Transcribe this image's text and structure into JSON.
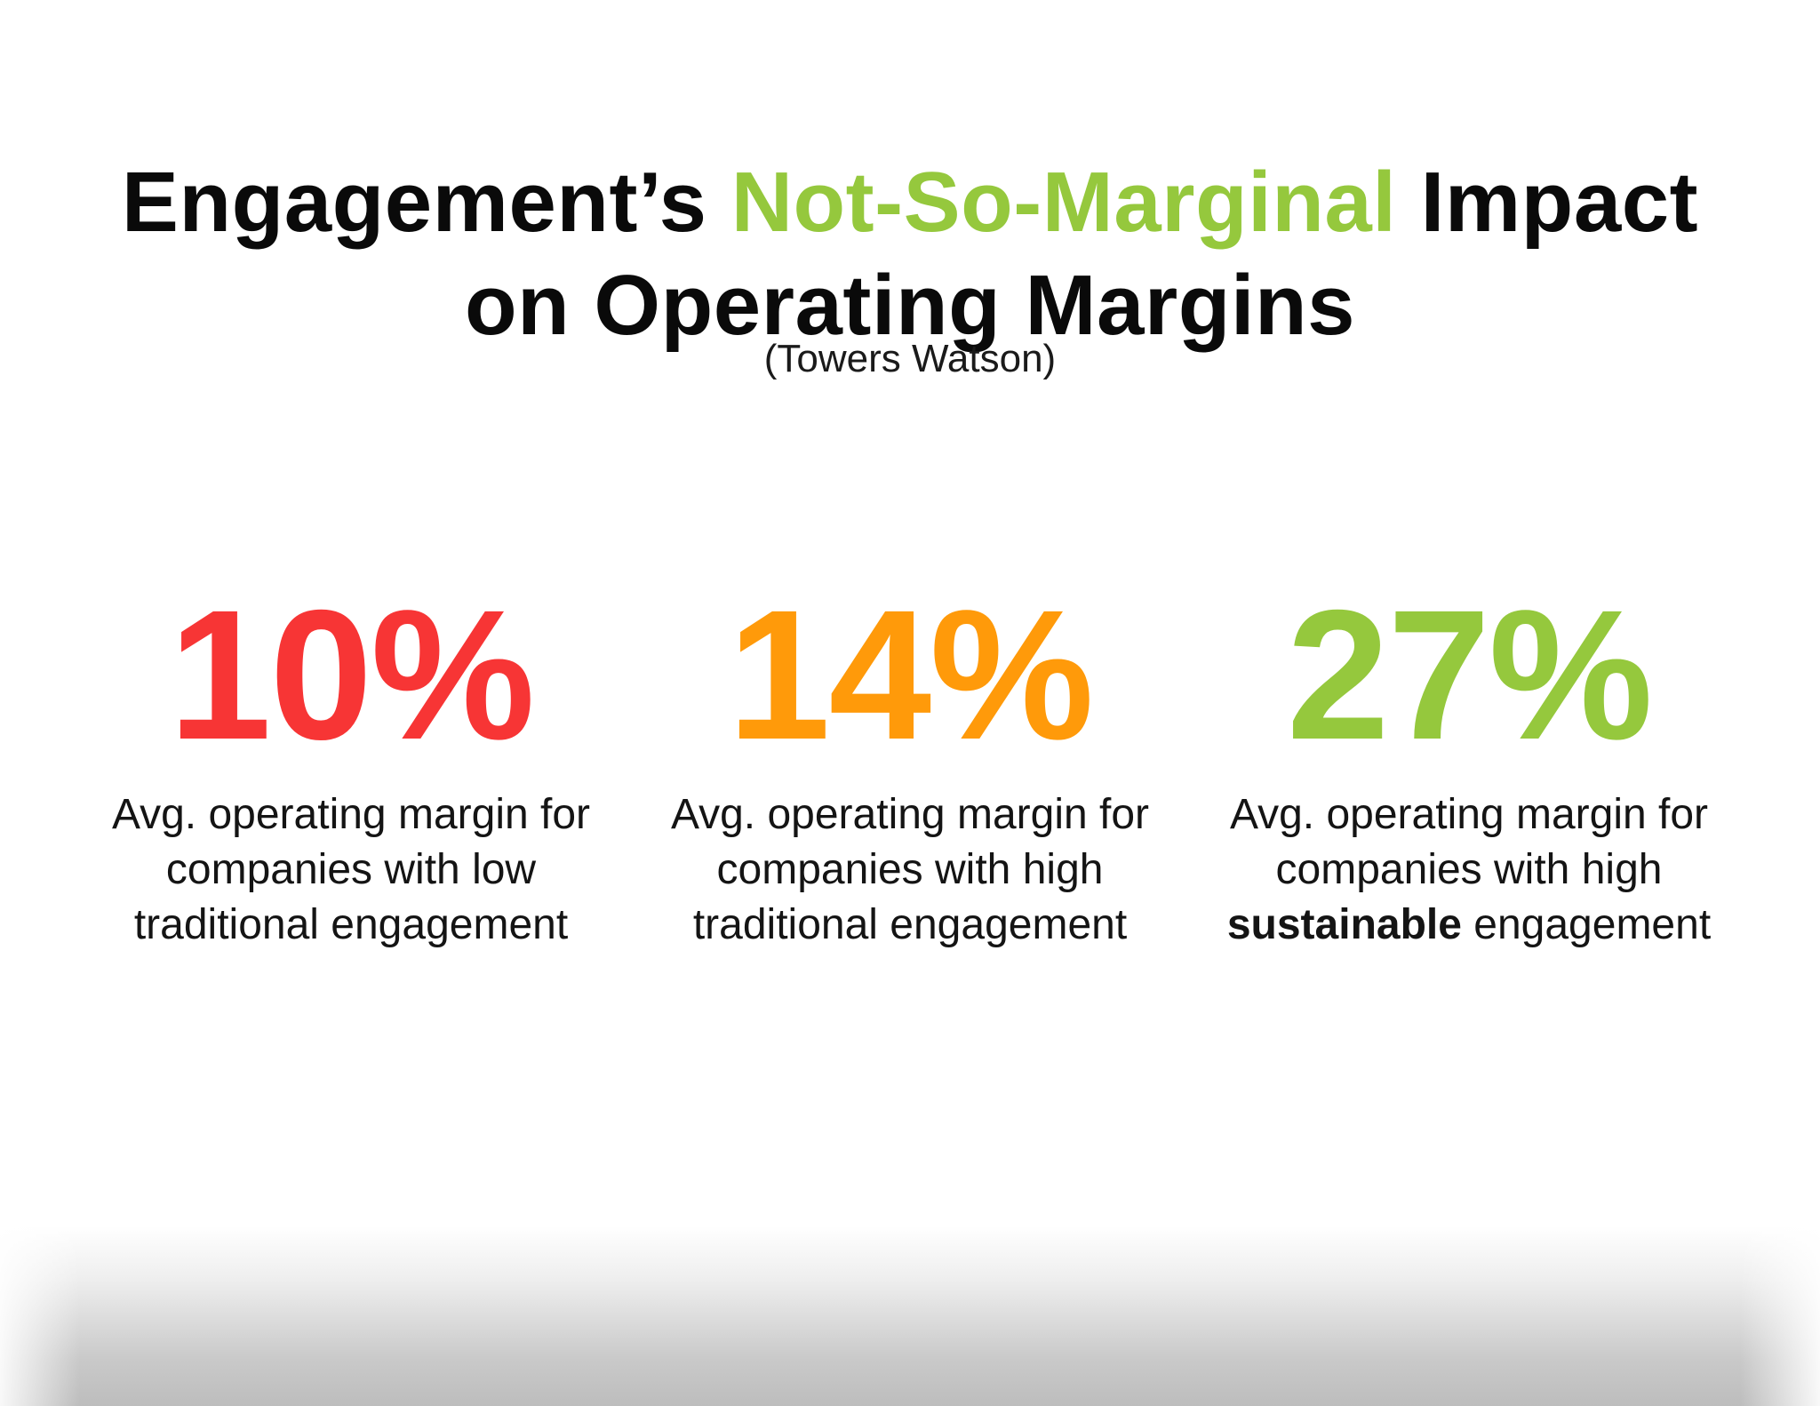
{
  "header": {
    "title_part1": "Engagement’s ",
    "title_accent": "Not-So-Marginal",
    "title_part2": " Impact",
    "title_line2": "on Operating Margins",
    "source": "(Towers Watson)"
  },
  "colors": {
    "accent": "#95c83d",
    "low": "#f73535",
    "mid": "#ff9a0a",
    "high": "#95c83d"
  },
  "stats": [
    {
      "value": "10%",
      "line1": "Avg. operating margin for",
      "line2": "companies with low",
      "line3_bold": "",
      "line3": "traditional engagement"
    },
    {
      "value": "14%",
      "line1": "Avg. operating margin for",
      "line2": "companies with high",
      "line3_bold": "",
      "line3": "traditional engagement"
    },
    {
      "value": "27%",
      "line1": "Avg. operating margin for",
      "line2": "companies with high",
      "line3_bold": "sustainable",
      "line3": " engagement"
    }
  ]
}
